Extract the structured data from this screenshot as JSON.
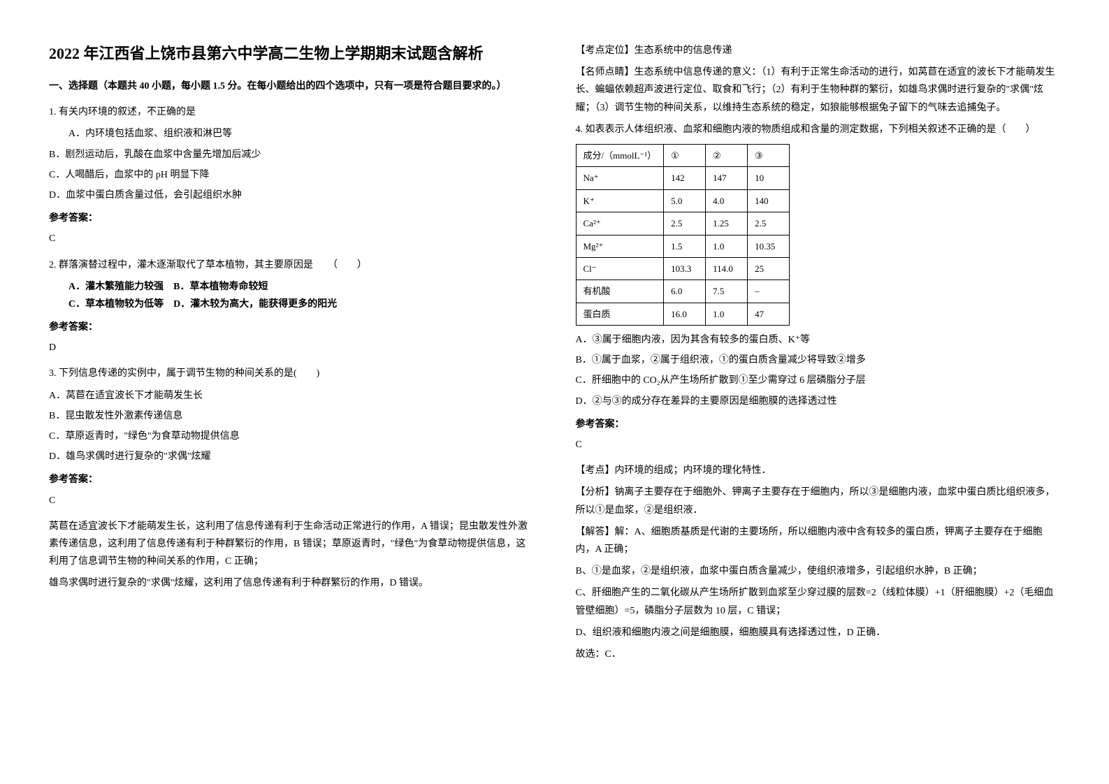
{
  "title": "2022 年江西省上饶市县第六中学高二生物上学期期末试题含解析",
  "section1_header": "一、选择题（本题共 40 小题，每小题 1.5 分。在每小题给出的四个选项中，只有一项是符合题目要求的。）",
  "q1": {
    "text": "1. 有关内环境的叙述，不正确的是",
    "optA": "A．内环境包括血浆、组织液和淋巴等",
    "optB": "B．剧烈运动后，乳酸在血浆中含量先增加后减少",
    "optC": "C．人喝醋后，血浆中的 pH 明显下降",
    "optD": "D．血浆中蛋白质含量过低，会引起组织水肿",
    "answer_label": "参考答案：",
    "answer": "C"
  },
  "q2": {
    "text": "2. 群落演替过程中，灌木逐渐取代了草本植物，其主要原因是　　（　　）",
    "optA": "A．灌木繁殖能力较强",
    "optB": "B．草本植物寿命较短",
    "optC": "C．草本植物较为低等",
    "optD": "D．灌木较为高大，能获得更多的阳光",
    "answer_label": "参考答案：",
    "answer": "D"
  },
  "q3": {
    "text": "3. 下列信息传递的实例中，属于调节生物的种间关系的是(　　)",
    "optA": "A．莴苣在适宜波长下才能萌发生长",
    "optB": "B．昆虫散发性外激素传递信息",
    "optC": "C．草原返青时，\"绿色\"为食草动物提供信息",
    "optD": "D．雄鸟求偶时进行复杂的\"求偶\"炫耀",
    "answer_label": "参考答案：",
    "answer": "C",
    "explain1": "莴苣在适宜波长下才能萌发生长，这利用了信息传递有利于生命活动正常进行的作用，A 错误；昆虫散发性外激素传递信息，这利用了信息传递有利于种群繁衍的作用，B 错误；草原返青时，\"绿色\"为食草动物提供信息，这利用了信息调节生物的种间关系的作用，C 正确；",
    "explain2": "雄鸟求偶时进行复杂的\"求偶\"炫耀，这利用了信息传递有利于种群繁衍的作用，D 错误。",
    "kaodian_label": "【考点定位】生态系统中的信息传递",
    "mingshi": "【名师点睛】生态系统中信息传递的意义：（1）有利于正常生命活动的进行，如莴苣在适宜的波长下才能萌发生长、蝙蝠依赖超声波进行定位、取食和飞行；（2）有利于生物种群的繁衍，如雄鸟求偶时进行复杂的\"求偶\"炫耀；（3）调节生物的种间关系，以维持生态系统的稳定，如狼能够根据兔子留下的气味去追捕兔子。"
  },
  "q4": {
    "text": "4. 如表表示人体组织液、血浆和细胞内液的物质组成和含量的测定数据，下列相关叙述不正确的是（　　）",
    "table": {
      "header": [
        "成分/（mmolL⁻¹）",
        "①",
        "②",
        "③"
      ],
      "rows": [
        [
          "Na⁺",
          "142",
          "147",
          "10"
        ],
        [
          "K⁺",
          "5.0",
          "4.0",
          "140"
        ],
        [
          "Ca²⁺",
          "2.5",
          "1.25",
          "2.5"
        ],
        [
          "Mg²⁺",
          "1.5",
          "1.0",
          "10.35"
        ],
        [
          "Cl⁻",
          "103.3",
          "114.0",
          "25"
        ],
        [
          "有机酸",
          "6.0",
          "7.5",
          "–"
        ],
        [
          "蛋白质",
          "16.0",
          "1.0",
          "47"
        ]
      ]
    },
    "optA": "A．③属于细胞内液，因为其含有较多的蛋白质、K⁺等",
    "optB": "B．①属于血浆，②属于组织液，①的蛋白质含量减少将导致②增多",
    "optC": "C．肝细胞中的 CO₂从产生场所扩散到①至少需穿过 6 层磷脂分子层",
    "optD": "D．②与③的成分存在差异的主要原因是细胞膜的选择透过性",
    "answer_label": "参考答案：",
    "answer": "C",
    "kaodian": "【考点】内环境的组成；内环境的理化特性．",
    "fenxi": "【分析】钠离子主要存在于细胞外、钾离子主要存在于细胞内，所以③是细胞内液，血浆中蛋白质比组织液多，所以①是血浆，②是组织液．",
    "jieda1": "【解答】解：A、细胞质基质是代谢的主要场所，所以细胞内液中含有较多的蛋白质，钾离子主要存在于细胞内，A 正确；",
    "jieda2": "B、①是血浆，②是组织液，血浆中蛋白质含量减少，使组织液增多，引起组织水肿，B 正确；",
    "jieda3": "C、肝细胞产生的二氧化碳从产生场所扩散到血浆至少穿过膜的层数=2（线粒体膜）+1（肝细胞膜）+2（毛细血管壁细胞）=5，磷脂分子层数为 10 层，C 错误；",
    "jieda4": "D、组织液和细胞内液之间是细胞膜，细胞膜具有选择透过性，D 正确．",
    "guxuan": "故选：C．"
  }
}
